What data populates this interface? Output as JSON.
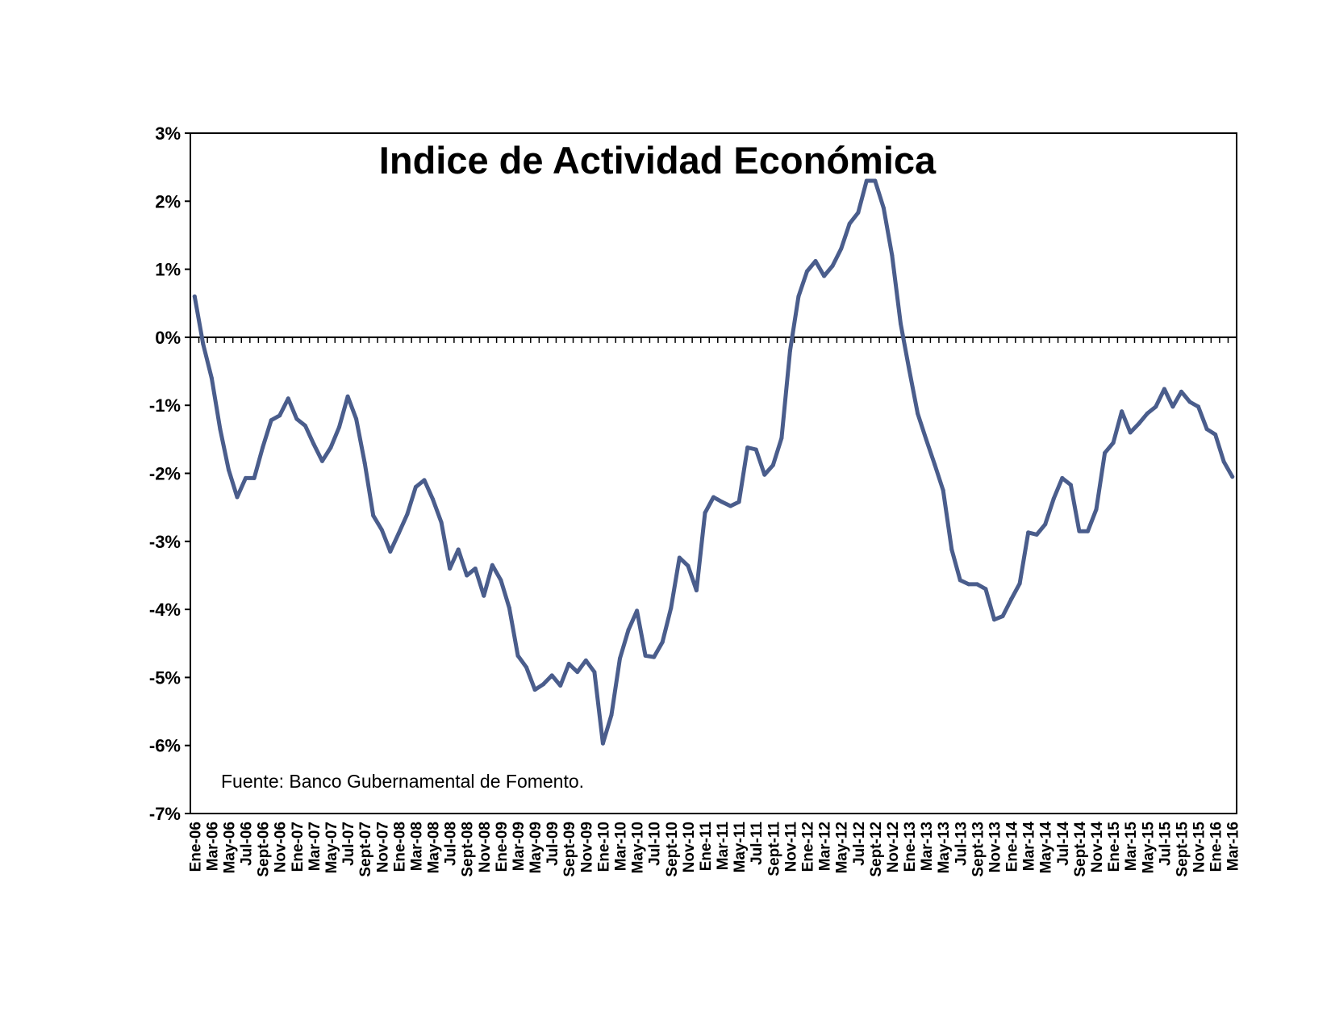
{
  "chart_data": {
    "type": "line",
    "title": "Indice de Actividad Económica",
    "annotation": "Fuente: Banco Gubernamental de Fomento.",
    "xlabel": "",
    "ylabel": "",
    "ylim": [
      -7,
      3
    ],
    "yticks": [
      3,
      2,
      1,
      0,
      -1,
      -2,
      -3,
      -4,
      -5,
      -6,
      -7
    ],
    "ytick_labels": [
      "3%",
      "2%",
      "1%",
      "0%",
      "-1%",
      "-2%",
      "-3%",
      "-4%",
      "-5%",
      "-6%",
      "-7%"
    ],
    "grid": false,
    "legend": "none",
    "line_color": "#4a5d8c",
    "categories": [
      "Ene-06",
      "Feb-06",
      "Mar-06",
      "Abr-06",
      "May-06",
      "Jun-06",
      "Jul-06",
      "Ago-06",
      "Sept-06",
      "Oct-06",
      "Nov-06",
      "Dic-06",
      "Ene-07",
      "Feb-07",
      "Mar-07",
      "Abr-07",
      "May-07",
      "Jun-07",
      "Jul-07",
      "Ago-07",
      "Sept-07",
      "Oct-07",
      "Nov-07",
      "Dic-07",
      "Ene-08",
      "Feb-08",
      "Mar-08",
      "Abr-08",
      "May-08",
      "Jun-08",
      "Jul-08",
      "Ago-08",
      "Sept-08",
      "Oct-08",
      "Nov-08",
      "Dic-08",
      "Ene-09",
      "Feb-09",
      "Mar-09",
      "Abr-09",
      "May-09",
      "Jun-09",
      "Jul-09",
      "Ago-09",
      "Sept-09",
      "Oct-09",
      "Nov-09",
      "Dic-09",
      "Ene-10",
      "Feb-10",
      "Mar-10",
      "Abr-10",
      "May-10",
      "Jun-10",
      "Jul-10",
      "Ago-10",
      "Sept-10",
      "Oct-10",
      "Nov-10",
      "Dic-10",
      "Ene-11",
      "Feb-11",
      "Mar-11",
      "Abr-11",
      "May-11",
      "Jun-11",
      "Jul-11",
      "Ago-11",
      "Sept-11",
      "Oct-11",
      "Nov-11",
      "Dic-11",
      "Ene-12",
      "Feb-12",
      "Mar-12",
      "Abr-12",
      "May-12",
      "Jun-12",
      "Jul-12",
      "Ago-12",
      "Sept-12",
      "Oct-12",
      "Nov-12",
      "Dic-12",
      "Ene-13",
      "Feb-13",
      "Mar-13",
      "Abr-13",
      "May-13",
      "Jun-13",
      "Jul-13",
      "Ago-13",
      "Sept-13",
      "Oct-13",
      "Nov-13",
      "Dic-13",
      "Ene-14",
      "Feb-14",
      "Mar-14",
      "Abr-14",
      "May-14",
      "Jun-14",
      "Jul-14",
      "Ago-14",
      "Sept-14",
      "Oct-14",
      "Nov-14",
      "Dic-14",
      "Ene-15",
      "Feb-15",
      "Mar-15",
      "Abr-15",
      "May-15",
      "Jun-15",
      "Jul-15",
      "Ago-15",
      "Sept-15",
      "Oct-15",
      "Nov-15",
      "Dic-15",
      "Ene-16",
      "Feb-16",
      "Mar-16"
    ],
    "x_tick_labels_shown": [
      "Ene-06",
      "Mar-06",
      "May-06",
      "Jul-06",
      "Sept-06",
      "Nov-06",
      "Ene-07",
      "Mar-07",
      "May-07",
      "Jul-07",
      "Sept-07",
      "Nov-07",
      "Ene-08",
      "Mar-08",
      "May-08",
      "Jul-08",
      "Sept-08",
      "Nov-08",
      "Ene-09",
      "Mar-09",
      "May-09",
      "Jul-09",
      "Sept-09",
      "Nov-09",
      "Ene-10",
      "Mar-10",
      "May-10",
      "Jul-10",
      "Sept-10",
      "Nov-10",
      "Ene-11",
      "Mar-11",
      "May-11",
      "Jul-11",
      "Sept-11",
      "Nov-11",
      "Ene-12",
      "Mar-12",
      "May-12",
      "Jul-12",
      "Sept-12",
      "Nov-12",
      "Ene-13",
      "Mar-13",
      "May-13",
      "Jul-13",
      "Sept-13",
      "Nov-13",
      "Ene-14",
      "Mar-14",
      "May-14",
      "Jul-14",
      "Sept-14",
      "Nov-14",
      "Ene-15",
      "Mar-15",
      "May-15",
      "Jul-15",
      "Sept-15",
      "Nov-15",
      "Ene-16",
      "Mar-16"
    ],
    "series": [
      {
        "values": [
          0.6,
          -0.1,
          -0.6,
          -1.35,
          -1.95,
          -2.35,
          -2.07,
          -2.07,
          -1.62,
          -1.22,
          -1.15,
          -0.9,
          -1.2,
          -1.3,
          -1.57,
          -1.82,
          -1.62,
          -1.32,
          -0.87,
          -1.2,
          -1.85,
          -2.62,
          -2.83,
          -3.15,
          -2.88,
          -2.6,
          -2.2,
          -2.1,
          -2.38,
          -2.72,
          -3.4,
          -3.12,
          -3.5,
          -3.4,
          -3.8,
          -3.35,
          -3.57,
          -3.98,
          -4.68,
          -4.85,
          -5.18,
          -5.1,
          -4.97,
          -5.12,
          -4.8,
          -4.92,
          -4.75,
          -4.92,
          -5.97,
          -5.55,
          -4.72,
          -4.3,
          -4.02,
          -4.68,
          -4.7,
          -4.48,
          -3.98,
          -3.24,
          -3.36,
          -3.72,
          -2.58,
          -2.35,
          -2.42,
          -2.48,
          -2.42,
          -1.62,
          -1.65,
          -2.02,
          -1.88,
          -1.48,
          -0.2,
          0.6,
          0.97,
          1.12,
          0.9,
          1.05,
          1.3,
          1.67,
          1.83,
          2.3,
          2.3,
          1.9,
          1.2,
          0.2,
          -0.47,
          -1.12,
          -1.5,
          -1.87,
          -2.25,
          -3.12,
          -3.57,
          -3.63,
          -3.63,
          -3.7,
          -4.15,
          -4.1,
          -3.85,
          -3.62,
          -2.87,
          -2.9,
          -2.75,
          -2.37,
          -2.07,
          -2.17,
          -2.85,
          -2.85,
          -2.53,
          -1.7,
          -1.55,
          -1.09,
          -1.4,
          -1.27,
          -1.12,
          -1.02,
          -0.76,
          -1.02,
          -0.8,
          -0.95,
          -1.02,
          -1.35,
          -1.43,
          -1.83,
          -2.05
        ]
      }
    ]
  }
}
